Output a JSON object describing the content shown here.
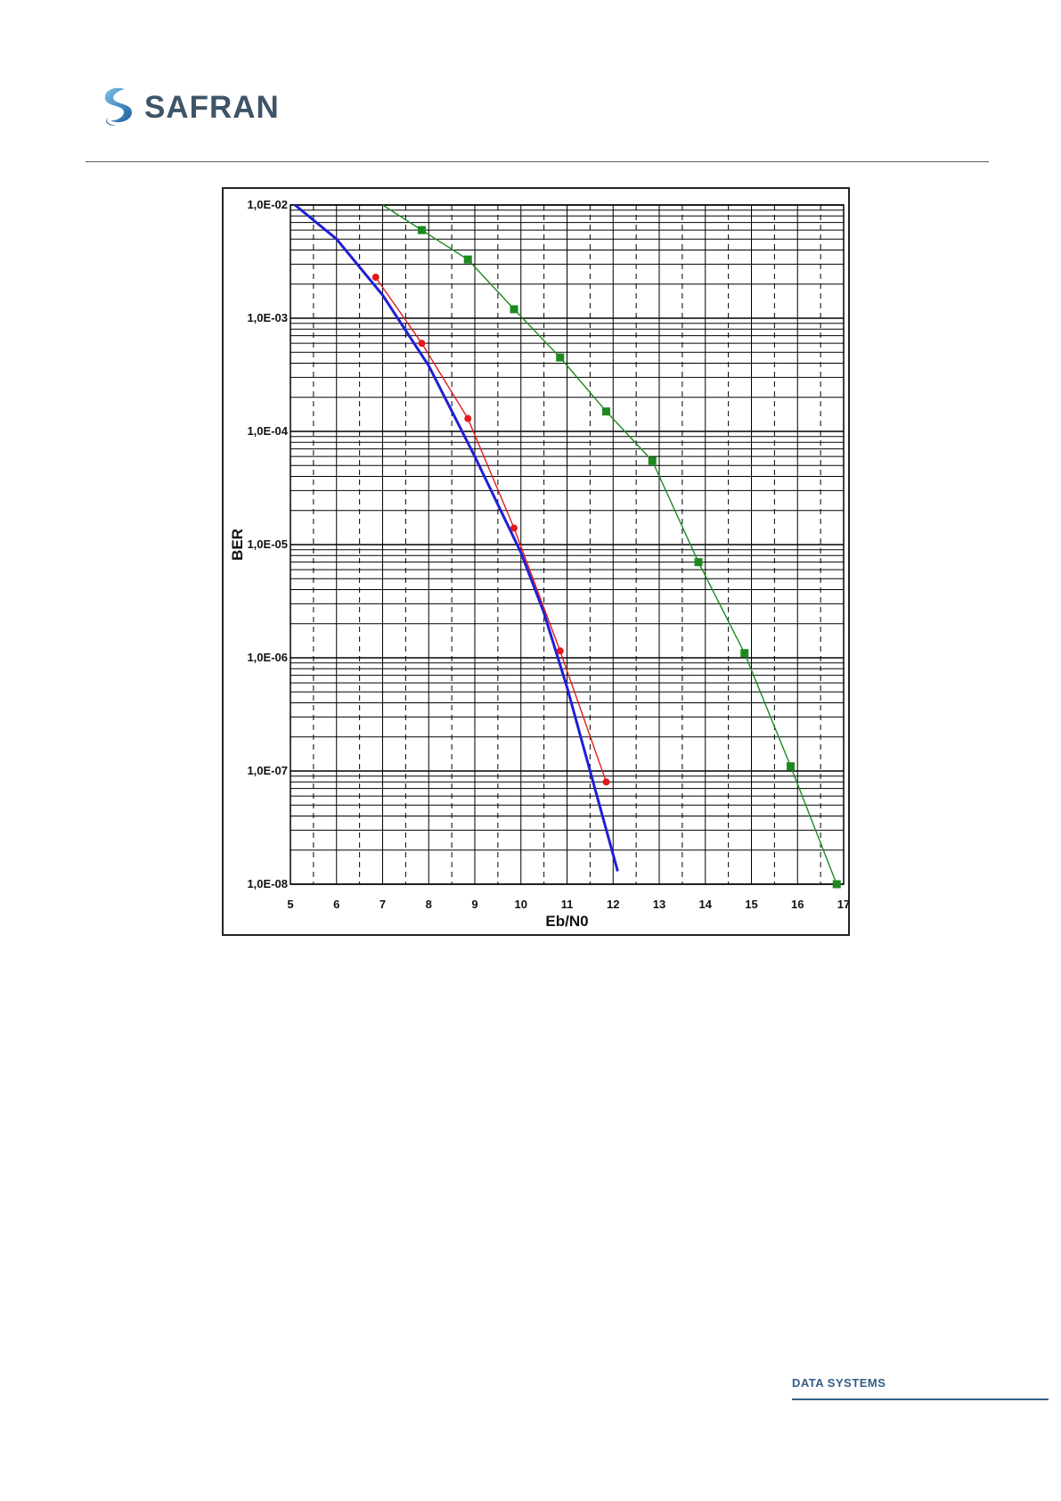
{
  "header": {
    "logo_text": "SAFRAN",
    "logo_icon": "safran-s-logo-icon"
  },
  "footer": {
    "label": "DATA SYSTEMS"
  },
  "colors": {
    "logo_blue": "#2e7fc2",
    "logo_text": "#3e5468",
    "footer_blue": "#355e86",
    "series_blue": "#1f1fd6",
    "series_red": "#e21a1a",
    "series_green": "#1e8a1e"
  },
  "chart_data": {
    "type": "line",
    "title": "",
    "xlabel": "Eb/N0",
    "ylabel": "BER",
    "xlim": [
      5,
      17
    ],
    "ylim": [
      1e-08,
      0.01
    ],
    "yscale": "log",
    "grid": true,
    "x_ticks": [
      "5",
      "6",
      "7",
      "8",
      "9",
      "10",
      "11",
      "12",
      "13",
      "14",
      "15",
      "16",
      "17"
    ],
    "y_ticks": [
      "1,0E-02",
      "1,0E-03",
      "1,0E-04",
      "1,0E-05",
      "1,0E-06",
      "1,0E-07",
      "1,0E-08"
    ],
    "series": [
      {
        "color": "#1f1fd6",
        "marker": "none",
        "x": [
          5.1,
          6.0,
          7.0,
          8.0,
          9.0,
          10.0,
          10.5,
          11.0,
          11.5,
          12.1
        ],
        "y": [
          0.01,
          0.005,
          0.0016,
          0.00038,
          6e-05,
          8.5e-06,
          2.5e-06,
          5.5e-07,
          1e-07,
          1.3e-08
        ]
      },
      {
        "color": "#e21a1a",
        "marker": "circle",
        "x": [
          6.85,
          7.85,
          8.85,
          9.85,
          10.85,
          11.85
        ],
        "y": [
          0.0023,
          0.0006,
          0.00013,
          1.4e-05,
          1.15e-06,
          8e-08
        ]
      },
      {
        "color": "#1e8a1e",
        "marker": "square",
        "x": [
          7.0,
          7.85,
          8.85,
          9.85,
          10.85,
          11.85,
          12.85,
          13.85,
          14.85,
          15.85,
          16.85
        ],
        "y": [
          0.01,
          0.006,
          0.0033,
          0.0012,
          0.00045,
          0.00015,
          5.5e-05,
          7e-06,
          1.1e-06,
          1.1e-07,
          1e-08
        ]
      }
    ]
  }
}
